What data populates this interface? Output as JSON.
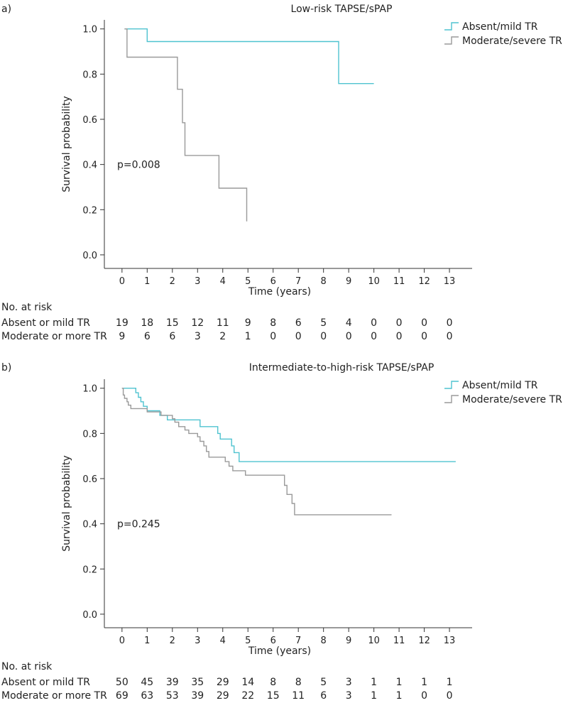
{
  "chart_data": [
    {
      "panel_label": "a)",
      "type": "line",
      "title": "Low-risk TAPSE/sPAP",
      "xlabel": "Time (years)",
      "ylabel": "Survival probability",
      "xlim": [
        -0.7,
        13.9
      ],
      "ylim": [
        -0.06,
        1.04
      ],
      "xticks": [
        0,
        1,
        2,
        3,
        4,
        5,
        6,
        7,
        8,
        9,
        10,
        11,
        12,
        13
      ],
      "yticks": [
        "0.0",
        "0.2",
        "0.4",
        "0.6",
        "0.8",
        "1.0"
      ],
      "yticks_values": [
        0,
        0.2,
        0.4,
        0.6,
        0.8,
        1.0
      ],
      "pvalue": "p=0.008",
      "series": [
        {
          "name": "Absent/mild TR",
          "color": "#4fc3d0",
          "points": [
            [
              0.1,
              1.0
            ],
            [
              1.0,
              1.0
            ],
            [
              1.0,
              0.944
            ],
            [
              8.6,
              0.944
            ],
            [
              8.6,
              0.758
            ],
            [
              10.0,
              0.758
            ]
          ]
        },
        {
          "name": "Moderate/severe TR",
          "color": "#9a9a9a",
          "points": [
            [
              0.1,
              1.0
            ],
            [
              0.2,
              1.0
            ],
            [
              0.2,
              0.875
            ],
            [
              2.2,
              0.875
            ],
            [
              2.2,
              0.733
            ],
            [
              2.4,
              0.733
            ],
            [
              2.4,
              0.585
            ],
            [
              2.5,
              0.585
            ],
            [
              2.5,
              0.44
            ],
            [
              3.85,
              0.44
            ],
            [
              3.85,
              0.295
            ],
            [
              4.95,
              0.295
            ],
            [
              4.95,
              0.148
            ]
          ]
        }
      ],
      "risk_table": {
        "header": "No. at risk",
        "rows": [
          {
            "label": "Absent or mild TR",
            "values": [
              "19",
              "18",
              "15",
              "12",
              "11",
              "9",
              "8",
              "6",
              "5",
              "4",
              "0",
              "0",
              "0",
              "0"
            ]
          },
          {
            "label": "Moderate or more TR",
            "values": [
              "9",
              "6",
              "6",
              "3",
              "2",
              "1",
              "0",
              "0",
              "0",
              "0",
              "0",
              "0",
              "0",
              "0"
            ]
          }
        ]
      }
    },
    {
      "panel_label": "b)",
      "type": "line",
      "title": "Intermediate-to-high-risk TAPSE/sPAP",
      "xlabel": "Time (years)",
      "ylabel": "Survival probability",
      "xlim": [
        -0.7,
        13.9
      ],
      "ylim": [
        -0.06,
        1.04
      ],
      "xticks": [
        0,
        1,
        2,
        3,
        4,
        5,
        6,
        7,
        8,
        9,
        10,
        11,
        12,
        13
      ],
      "yticks": [
        "0.0",
        "0.2",
        "0.4",
        "0.6",
        "0.8",
        "1.0"
      ],
      "yticks_values": [
        0,
        0.2,
        0.4,
        0.6,
        0.8,
        1.0
      ],
      "pvalue": "p=0.245",
      "series": [
        {
          "name": "Absent/mild TR",
          "color": "#4fc3d0",
          "points": [
            [
              0,
              1.0
            ],
            [
              0.55,
              1.0
            ],
            [
              0.55,
              0.98
            ],
            [
              0.65,
              0.98
            ],
            [
              0.65,
              0.96
            ],
            [
              0.75,
              0.96
            ],
            [
              0.75,
              0.94
            ],
            [
              0.85,
              0.94
            ],
            [
              0.85,
              0.92
            ],
            [
              1.0,
              0.92
            ],
            [
              1.0,
              0.9
            ],
            [
              1.5,
              0.9
            ],
            [
              1.5,
              0.88
            ],
            [
              1.8,
              0.88
            ],
            [
              1.8,
              0.86
            ],
            [
              3.1,
              0.86
            ],
            [
              3.1,
              0.83
            ],
            [
              3.8,
              0.83
            ],
            [
              3.8,
              0.8
            ],
            [
              3.9,
              0.8
            ],
            [
              3.9,
              0.775
            ],
            [
              4.35,
              0.775
            ],
            [
              4.35,
              0.745
            ],
            [
              4.45,
              0.745
            ],
            [
              4.45,
              0.715
            ],
            [
              4.65,
              0.715
            ],
            [
              4.65,
              0.675
            ],
            [
              13.25,
              0.675
            ]
          ]
        },
        {
          "name": "Moderate/severe TR",
          "color": "#9a9a9a",
          "points": [
            [
              0,
              1.0
            ],
            [
              0.05,
              1.0
            ],
            [
              0.05,
              0.97
            ],
            [
              0.1,
              0.97
            ],
            [
              0.1,
              0.955
            ],
            [
              0.2,
              0.955
            ],
            [
              0.2,
              0.94
            ],
            [
              0.25,
              0.94
            ],
            [
              0.25,
              0.925
            ],
            [
              0.35,
              0.925
            ],
            [
              0.35,
              0.91
            ],
            [
              1.0,
              0.91
            ],
            [
              1.0,
              0.895
            ],
            [
              1.55,
              0.895
            ],
            [
              1.55,
              0.88
            ],
            [
              2.0,
              0.88
            ],
            [
              2.0,
              0.865
            ],
            [
              2.1,
              0.865
            ],
            [
              2.1,
              0.85
            ],
            [
              2.25,
              0.85
            ],
            [
              2.25,
              0.83
            ],
            [
              2.5,
              0.83
            ],
            [
              2.5,
              0.815
            ],
            [
              2.65,
              0.815
            ],
            [
              2.65,
              0.8
            ],
            [
              3.0,
              0.8
            ],
            [
              3.0,
              0.785
            ],
            [
              3.1,
              0.785
            ],
            [
              3.1,
              0.765
            ],
            [
              3.25,
              0.765
            ],
            [
              3.25,
              0.745
            ],
            [
              3.35,
              0.745
            ],
            [
              3.35,
              0.72
            ],
            [
              3.45,
              0.72
            ],
            [
              3.45,
              0.695
            ],
            [
              4.1,
              0.695
            ],
            [
              4.1,
              0.675
            ],
            [
              4.25,
              0.675
            ],
            [
              4.25,
              0.655
            ],
            [
              4.4,
              0.655
            ],
            [
              4.4,
              0.635
            ],
            [
              4.9,
              0.635
            ],
            [
              4.9,
              0.615
            ],
            [
              6.45,
              0.615
            ],
            [
              6.45,
              0.57
            ],
            [
              6.55,
              0.57
            ],
            [
              6.55,
              0.53
            ],
            [
              6.75,
              0.53
            ],
            [
              6.75,
              0.49
            ],
            [
              6.85,
              0.49
            ],
            [
              6.85,
              0.44
            ],
            [
              10.7,
              0.44
            ]
          ]
        }
      ],
      "risk_table": {
        "header": "No. at risk",
        "rows": [
          {
            "label": "Absent or mild TR",
            "values": [
              "50",
              "45",
              "39",
              "35",
              "29",
              "14",
              "8",
              "8",
              "5",
              "3",
              "1",
              "1",
              "1",
              "1"
            ]
          },
          {
            "label": "Moderate or more TR",
            "values": [
              "69",
              "63",
              "53",
              "39",
              "29",
              "22",
              "15",
              "11",
              "6",
              "3",
              "1",
              "1",
              "0",
              "0"
            ]
          }
        ]
      }
    }
  ]
}
